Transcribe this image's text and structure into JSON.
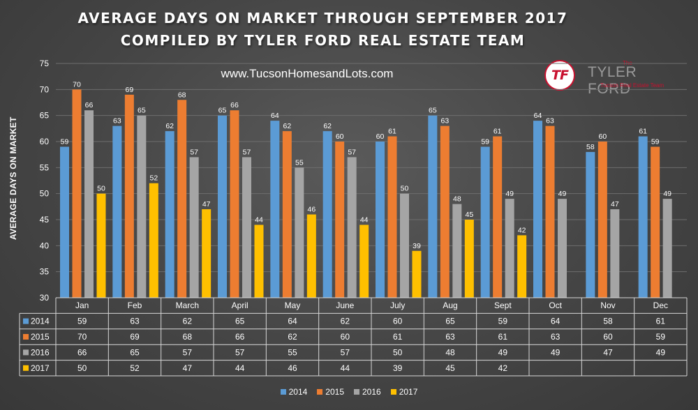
{
  "header": {
    "title_line1": "AVERAGE DAYS ON MARKET THROUGH SEPTEMBER 2017",
    "title_line2": "COMPILED BY TYLER FORD REAL ESTATE TEAM",
    "website": "www.TucsonHomesandLots.com"
  },
  "logo": {
    "badge_text": "TF",
    "small_text": "The",
    "name": "TYLER FORD",
    "subtitle": "Tucson Real Estate Team"
  },
  "chart_data": {
    "type": "bar",
    "ylabel": "AVERAGE DAYS ON MARKET",
    "ylim": [
      30,
      75
    ],
    "yticks": [
      30,
      35,
      40,
      45,
      50,
      55,
      60,
      65,
      70,
      75
    ],
    "grid": true,
    "legend_position": "bottom",
    "data_table": true,
    "categories": [
      "Jan",
      "Feb",
      "March",
      "April",
      "May",
      "June",
      "July",
      "Aug",
      "Sept",
      "Oct",
      "Nov",
      "Dec"
    ],
    "series": [
      {
        "name": "2014",
        "color": "#5b9bd5",
        "values": [
          59,
          63,
          62,
          65,
          64,
          62,
          60,
          65,
          59,
          64,
          58,
          61
        ]
      },
      {
        "name": "2015",
        "color": "#ed7d31",
        "values": [
          70,
          69,
          68,
          66,
          62,
          60,
          61,
          63,
          61,
          63,
          60,
          59
        ]
      },
      {
        "name": "2016",
        "color": "#a5a5a5",
        "values": [
          66,
          65,
          57,
          57,
          55,
          57,
          50,
          48,
          49,
          49,
          47,
          49
        ]
      },
      {
        "name": "2017",
        "color": "#ffc000",
        "values": [
          50,
          52,
          47,
          44,
          46,
          44,
          39,
          45,
          42,
          null,
          null,
          null
        ]
      }
    ]
  }
}
